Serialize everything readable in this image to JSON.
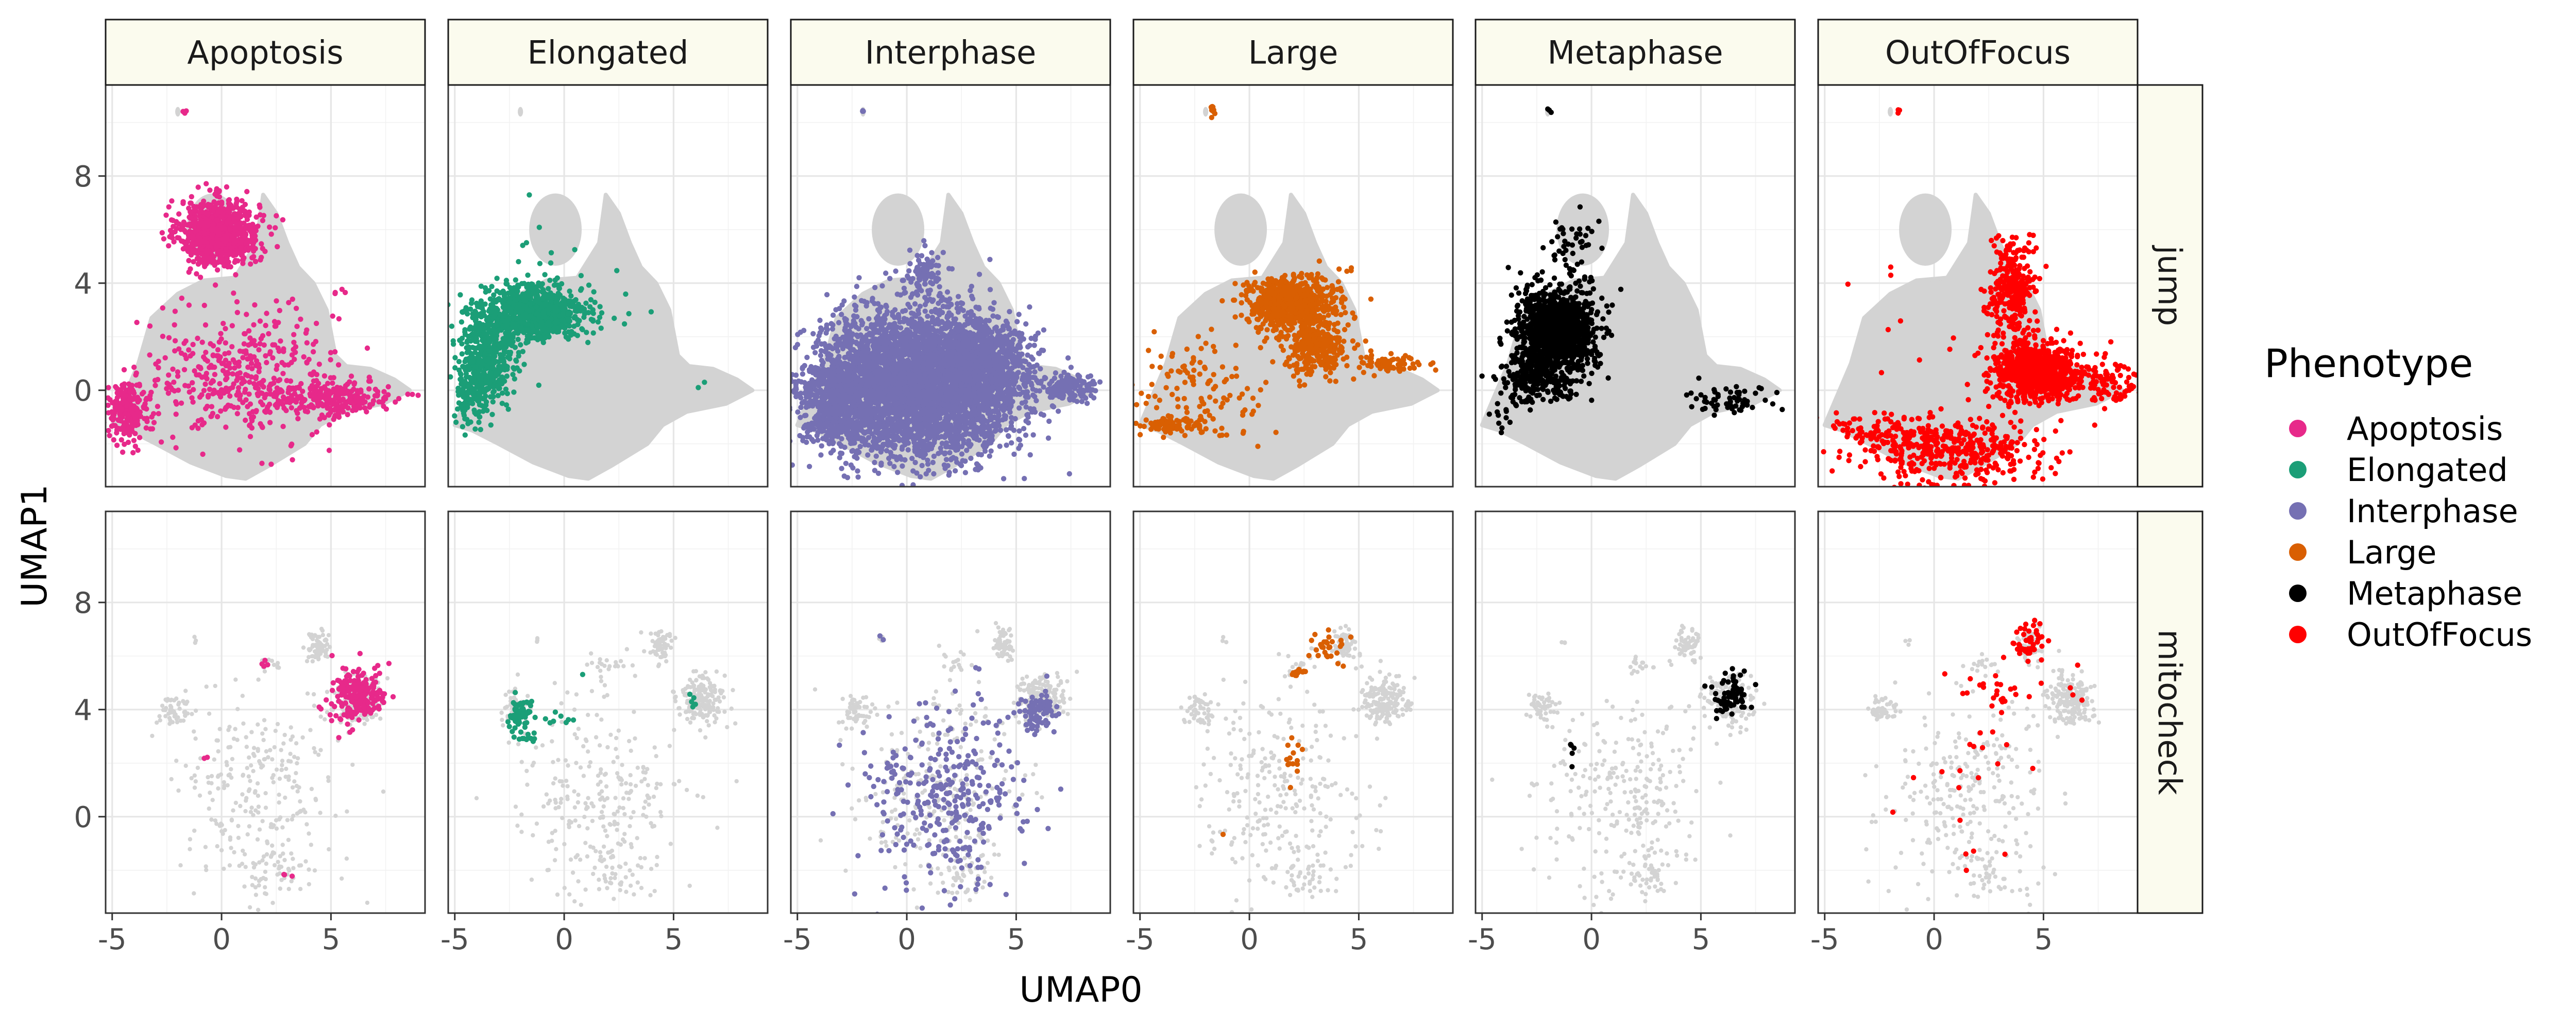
{
  "chart_data": {
    "type": "scatter",
    "xlabel": "UMAP0",
    "ylabel": "UMAP1",
    "xlim": [
      -5.3,
      9.3
    ],
    "ylim": [
      -3.6,
      11.4
    ],
    "x_ticks": [
      -5,
      0,
      5
    ],
    "x_tick_labels": [
      "-5",
      "0",
      "5"
    ],
    "y_ticks": [
      0,
      4,
      8
    ],
    "y_tick_labels": [
      "0",
      "4",
      "8"
    ],
    "grid": true,
    "legend_position": "right",
    "legend_title": "Phenotype",
    "columns": [
      "Apoptosis",
      "Elongated",
      "Interphase",
      "Large",
      "Metaphase",
      "OutOfFocus"
    ],
    "rows": [
      "jump",
      "mitocheck"
    ],
    "colors": {
      "Apoptosis": "#e7298a",
      "Elongated": "#1b9e77",
      "Interphase": "#7570b3",
      "Large": "#d95f02",
      "Metaphase": "#000000",
      "OutOfFocus": "#ff0000",
      "background": "#d3d3d3"
    },
    "series": [
      {
        "name": "Apoptosis",
        "color": "#e7298a"
      },
      {
        "name": "Elongated",
        "color": "#1b9e77"
      },
      {
        "name": "Interphase",
        "color": "#7570b3"
      },
      {
        "name": "Large",
        "color": "#d95f02"
      },
      {
        "name": "Metaphase",
        "color": "#000000"
      },
      {
        "name": "OutOfFocus",
        "color": "#ff0000"
      }
    ],
    "background_shapes": {
      "jump": [
        {
          "kind": "polygon",
          "points": [
            [
              -5.0,
              -1.3
            ],
            [
              -3.8,
              1.0
            ],
            [
              -3.2,
              2.7
            ],
            [
              -2.0,
              3.6
            ],
            [
              -0.8,
              4.1
            ],
            [
              0.6,
              4.2
            ],
            [
              1.6,
              5.5
            ],
            [
              1.9,
              7.3
            ],
            [
              2.5,
              6.6
            ],
            [
              3.0,
              5.5
            ],
            [
              3.5,
              4.6
            ],
            [
              4.2,
              4.0
            ],
            [
              4.8,
              3.0
            ],
            [
              5.2,
              1.3
            ],
            [
              5.7,
              0.9
            ],
            [
              6.8,
              0.8
            ],
            [
              7.9,
              0.4
            ],
            [
              8.6,
              0.0
            ],
            [
              7.4,
              -0.5
            ],
            [
              5.6,
              -0.8
            ],
            [
              4.5,
              -1.3
            ],
            [
              3.8,
              -2.0
            ],
            [
              3.0,
              -2.4
            ],
            [
              2.2,
              -2.8
            ],
            [
              1.1,
              -3.3
            ],
            [
              0.2,
              -3.2
            ],
            [
              -1.4,
              -2.7
            ],
            [
              -3.0,
              -2.0
            ],
            [
              -4.2,
              -1.5
            ]
          ]
        },
        {
          "kind": "ellipse",
          "cx": -0.4,
          "cy": 6.0,
          "rx": 1.2,
          "ry": 1.35
        },
        {
          "kind": "ellipse",
          "cx": -2.0,
          "cy": 10.4,
          "rx": 0.12,
          "ry": 0.18
        }
      ],
      "mitocheck": [
        {
          "kind": "cluster",
          "cx": 6.2,
          "cy": 4.4,
          "sx": 0.55,
          "sy": 0.45,
          "n": 180
        },
        {
          "kind": "cluster",
          "cx": 4.4,
          "cy": 6.4,
          "sx": 0.25,
          "sy": 0.3,
          "n": 60
        },
        {
          "kind": "cluster",
          "cx": -2.2,
          "cy": 4.0,
          "sx": 0.35,
          "sy": 0.3,
          "n": 50
        },
        {
          "kind": "cluster",
          "cx": 1.5,
          "cy": 0.8,
          "sx": 1.9,
          "sy": 1.9,
          "n": 260
        },
        {
          "kind": "cluster",
          "cx": 2.5,
          "cy": -2.2,
          "sx": 0.6,
          "sy": 0.5,
          "n": 40
        },
        {
          "kind": "cluster",
          "cx": 2.2,
          "cy": 5.7,
          "sx": 0.4,
          "sy": 0.2,
          "n": 16
        },
        {
          "kind": "cluster",
          "cx": -1.2,
          "cy": 6.6,
          "sx": 0.1,
          "sy": 0.1,
          "n": 3
        }
      ]
    },
    "panels": [
      {
        "row": "jump",
        "phenotype": "Apoptosis",
        "clusters": [
          {
            "cx": -0.1,
            "cy": 5.9,
            "sx": 0.9,
            "sy": 0.6,
            "n": 900
          },
          {
            "cx": 1.0,
            "cy": 0.5,
            "sx": 2.2,
            "sy": 1.2,
            "n": 420
          },
          {
            "cx": -4.3,
            "cy": -0.8,
            "sx": 0.45,
            "sy": 0.5,
            "n": 220
          },
          {
            "cx": 5.0,
            "cy": -0.3,
            "sx": 1.5,
            "sy": 0.35,
            "n": 240
          },
          {
            "cx": -1.7,
            "cy": 10.4,
            "sx": 0.05,
            "sy": 0.05,
            "n": 3
          },
          {
            "cx": 5.3,
            "cy": 3.7,
            "sx": 0.3,
            "sy": 0.1,
            "n": 4
          }
        ]
      },
      {
        "row": "jump",
        "phenotype": "Elongated",
        "clusters": [
          {
            "cx": -1.5,
            "cy": 2.9,
            "sx": 1.2,
            "sy": 0.5,
            "n": 900
          },
          {
            "cx": -3.4,
            "cy": 1.4,
            "sx": 0.6,
            "sy": 0.9,
            "n": 400
          },
          {
            "cx": -4.2,
            "cy": 0.0,
            "sx": 0.4,
            "sy": 0.6,
            "n": 150
          },
          {
            "cx": -0.8,
            "cy": 5.5,
            "sx": 0.6,
            "sy": 0.8,
            "n": 10
          },
          {
            "cx": 2.0,
            "cy": 3.0,
            "sx": 1.5,
            "sy": 0.8,
            "n": 10
          },
          {
            "cx": 6.3,
            "cy": 0.2,
            "sx": 0.1,
            "sy": 0.1,
            "n": 2
          }
        ]
      },
      {
        "row": "jump",
        "phenotype": "Interphase",
        "clusters": [
          {
            "cx": 0.5,
            "cy": 0.3,
            "sx": 2.2,
            "sy": 1.3,
            "n": 4000
          },
          {
            "cx": 3.6,
            "cy": 0.8,
            "sx": 1.0,
            "sy": 0.9,
            "n": 700
          },
          {
            "cx": -3.2,
            "cy": -0.5,
            "sx": 0.9,
            "sy": 0.8,
            "n": 600
          },
          {
            "cx": 0.8,
            "cy": 4.3,
            "sx": 0.4,
            "sy": 0.5,
            "n": 80
          },
          {
            "cx": 7.4,
            "cy": 0.1,
            "sx": 0.6,
            "sy": 0.25,
            "n": 150
          },
          {
            "cx": -2.0,
            "cy": 10.4,
            "sx": 0.05,
            "sy": 0.05,
            "n": 3
          }
        ]
      },
      {
        "row": "jump",
        "phenotype": "Large",
        "clusters": [
          {
            "cx": 1.8,
            "cy": 3.3,
            "sx": 1.0,
            "sy": 0.5,
            "n": 700
          },
          {
            "cx": 3.0,
            "cy": 1.6,
            "sx": 0.7,
            "sy": 0.5,
            "n": 300
          },
          {
            "cx": -2.0,
            "cy": 0.0,
            "sx": 1.6,
            "sy": 1.1,
            "n": 120
          },
          {
            "cx": -3.5,
            "cy": -1.3,
            "sx": 0.8,
            "sy": 0.15,
            "n": 80
          },
          {
            "cx": 6.4,
            "cy": 1.0,
            "sx": 0.7,
            "sy": 0.2,
            "n": 70
          },
          {
            "cx": -1.7,
            "cy": 10.5,
            "sx": 0.05,
            "sy": 0.12,
            "n": 12
          },
          {
            "cx": 4.7,
            "cy": 4.6,
            "sx": 0.05,
            "sy": 0.05,
            "n": 2
          }
        ]
      },
      {
        "row": "jump",
        "phenotype": "Metaphase",
        "clusters": [
          {
            "cx": -1.6,
            "cy": 2.2,
            "sx": 0.9,
            "sy": 0.8,
            "n": 1200
          },
          {
            "cx": -2.6,
            "cy": 0.4,
            "sx": 0.8,
            "sy": 0.5,
            "n": 200
          },
          {
            "cx": -0.8,
            "cy": 5.4,
            "sx": 0.6,
            "sy": 0.6,
            "n": 40
          },
          {
            "cx": 6.3,
            "cy": -0.4,
            "sx": 1.1,
            "sy": 0.25,
            "n": 60
          },
          {
            "cx": -4.3,
            "cy": -1.0,
            "sx": 0.3,
            "sy": 0.3,
            "n": 10
          },
          {
            "cx": -1.9,
            "cy": 10.4,
            "sx": 0.05,
            "sy": 0.05,
            "n": 3
          }
        ]
      },
      {
        "row": "jump",
        "phenotype": "OutOfFocus",
        "clusters": [
          {
            "cx": 4.6,
            "cy": 0.7,
            "sx": 0.9,
            "sy": 0.5,
            "n": 800
          },
          {
            "cx": 3.5,
            "cy": 3.8,
            "sx": 0.5,
            "sy": 0.9,
            "n": 300
          },
          {
            "cx": 1.0,
            "cy": -2.3,
            "sx": 2.0,
            "sy": 0.6,
            "n": 400
          },
          {
            "cx": 7.6,
            "cy": 0.3,
            "sx": 0.9,
            "sy": 0.4,
            "n": 120
          },
          {
            "cx": -2.5,
            "cy": -1.6,
            "sx": 1.5,
            "sy": 0.4,
            "n": 100
          },
          {
            "cx": 0.0,
            "cy": 1.5,
            "sx": 2.0,
            "sy": 1.5,
            "n": 15
          },
          {
            "cx": -1.6,
            "cy": 10.4,
            "sx": 0.05,
            "sy": 0.05,
            "n": 3
          }
        ]
      },
      {
        "row": "mitocheck",
        "phenotype": "Apoptosis",
        "clusters": [
          {
            "cx": 6.2,
            "cy": 4.5,
            "sx": 0.6,
            "sy": 0.5,
            "n": 220
          },
          {
            "cx": 2.0,
            "cy": 5.7,
            "sx": 0.2,
            "sy": 0.1,
            "n": 4
          },
          {
            "cx": -0.8,
            "cy": 2.2,
            "sx": 0.05,
            "sy": 0.05,
            "n": 2
          },
          {
            "cx": 3.0,
            "cy": -2.2,
            "sx": 0.1,
            "sy": 0.05,
            "n": 3
          }
        ]
      },
      {
        "row": "mitocheck",
        "phenotype": "Elongated",
        "clusters": [
          {
            "cx": -2.0,
            "cy": 3.8,
            "sx": 0.3,
            "sy": 0.35,
            "n": 60
          },
          {
            "cx": -1.8,
            "cy": 2.9,
            "sx": 0.2,
            "sy": 0.1,
            "n": 8
          },
          {
            "cx": -0.5,
            "cy": 3.6,
            "sx": 0.4,
            "sy": 0.15,
            "n": 8
          },
          {
            "cx": 6.0,
            "cy": 4.3,
            "sx": 0.15,
            "sy": 0.1,
            "n": 5
          },
          {
            "cx": 0.8,
            "cy": 5.3,
            "sx": 0.05,
            "sy": 0.05,
            "n": 1
          }
        ]
      },
      {
        "row": "mitocheck",
        "phenotype": "Interphase",
        "clusters": [
          {
            "cx": 1.8,
            "cy": 0.8,
            "sx": 1.8,
            "sy": 1.7,
            "n": 320
          },
          {
            "cx": 6.0,
            "cy": 3.9,
            "sx": 0.4,
            "sy": 0.35,
            "n": 80
          },
          {
            "cx": -1.2,
            "cy": 6.6,
            "sx": 0.05,
            "sy": 0.05,
            "n": 2
          },
          {
            "cx": 3.2,
            "cy": 5.5,
            "sx": 0.1,
            "sy": 0.1,
            "n": 2
          }
        ]
      },
      {
        "row": "mitocheck",
        "phenotype": "Large",
        "clusters": [
          {
            "cx": 3.6,
            "cy": 6.2,
            "sx": 0.4,
            "sy": 0.35,
            "n": 30
          },
          {
            "cx": 2.2,
            "cy": 5.4,
            "sx": 0.2,
            "sy": 0.1,
            "n": 12
          },
          {
            "cx": 2.0,
            "cy": 2.0,
            "sx": 0.2,
            "sy": 0.5,
            "n": 14
          },
          {
            "cx": -1.2,
            "cy": -0.6,
            "sx": 0.05,
            "sy": 0.05,
            "n": 1
          }
        ]
      },
      {
        "row": "mitocheck",
        "phenotype": "Metaphase",
        "clusters": [
          {
            "cx": 6.4,
            "cy": 4.5,
            "sx": 0.5,
            "sy": 0.4,
            "n": 70
          },
          {
            "cx": -0.9,
            "cy": 2.5,
            "sx": 0.05,
            "sy": 0.25,
            "n": 5
          }
        ]
      },
      {
        "row": "mitocheck",
        "phenotype": "OutOfFocus",
        "clusters": [
          {
            "cx": 4.3,
            "cy": 6.5,
            "sx": 0.3,
            "sy": 0.3,
            "n": 50
          },
          {
            "cx": 2.8,
            "cy": 4.8,
            "sx": 0.9,
            "sy": 0.6,
            "n": 25
          },
          {
            "cx": 2.0,
            "cy": 1.0,
            "sx": 1.5,
            "sy": 1.3,
            "n": 18
          },
          {
            "cx": 6.5,
            "cy": 4.8,
            "sx": 0.2,
            "sy": 0.3,
            "n": 4
          },
          {
            "cx": 1.5,
            "cy": -2.0,
            "sx": 0.1,
            "sy": 0.1,
            "n": 1
          }
        ]
      }
    ]
  }
}
